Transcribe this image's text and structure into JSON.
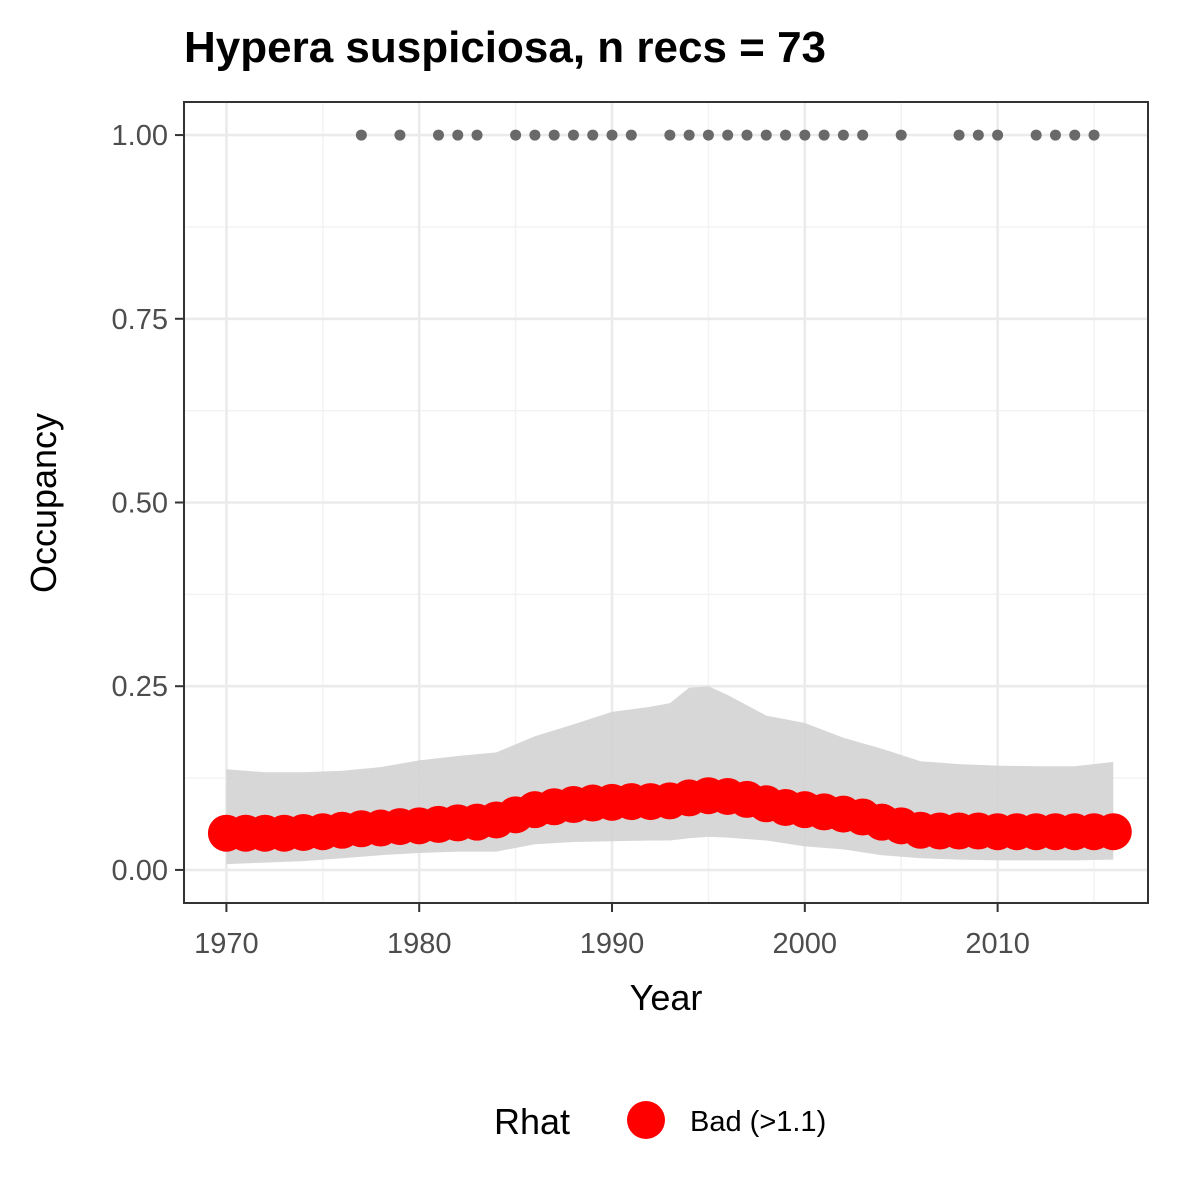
{
  "chart_data": {
    "type": "line",
    "title": "Hypera suspiciosa, n recs = 73",
    "xlabel": "Year",
    "ylabel": "Occupancy",
    "xlim": [
      1967.8,
      2017.8
    ],
    "ylim": [
      -0.045,
      1.045
    ],
    "x_ticks": [
      1970,
      1980,
      1990,
      2000,
      2010
    ],
    "x_tick_labels": [
      "1970",
      "1980",
      "1990",
      "2000",
      "2010"
    ],
    "y_ticks": [
      0,
      0.25,
      0.5,
      0.75,
      1.0
    ],
    "y_tick_labels": [
      "0.00",
      "0.25",
      "0.50",
      "0.75",
      "1.00"
    ],
    "grid": true,
    "legend": {
      "position": "bottom",
      "title": "Rhat",
      "entries": [
        {
          "label": "Bad (>1.1)",
          "color": "#ff0000"
        }
      ]
    },
    "series": [
      {
        "kind": "ribbon",
        "color": "#d3d3d3",
        "x": [
          1970,
          1972,
          1974,
          1976,
          1978,
          1980,
          1982,
          1984,
          1986,
          1988,
          1990,
          1992,
          1993,
          1994,
          1995,
          1996,
          1998,
          2000,
          2002,
          2004,
          2006,
          2008,
          2010,
          2012,
          2014,
          2016
        ],
        "upper": [
          0.137,
          0.133,
          0.133,
          0.135,
          0.14,
          0.149,
          0.155,
          0.16,
          0.182,
          0.198,
          0.215,
          0.222,
          0.227,
          0.248,
          0.25,
          0.238,
          0.21,
          0.2,
          0.18,
          0.165,
          0.148,
          0.144,
          0.142,
          0.141,
          0.141,
          0.147
        ],
        "lower": [
          0.008,
          0.01,
          0.012,
          0.016,
          0.02,
          0.023,
          0.025,
          0.025,
          0.035,
          0.038,
          0.039,
          0.04,
          0.04,
          0.043,
          0.045,
          0.044,
          0.04,
          0.032,
          0.028,
          0.02,
          0.016,
          0.014,
          0.013,
          0.013,
          0.013,
          0.014
        ]
      },
      {
        "kind": "points",
        "color": "#ff0000",
        "x": [
          1970,
          1971,
          1972,
          1973,
          1974,
          1975,
          1976,
          1977,
          1978,
          1979,
          1980,
          1981,
          1982,
          1983,
          1984,
          1985,
          1986,
          1987,
          1988,
          1989,
          1990,
          1991,
          1992,
          1993,
          1994,
          1995,
          1996,
          1997,
          1998,
          1999,
          2000,
          2001,
          2002,
          2003,
          2004,
          2005,
          2006,
          2007,
          2008,
          2009,
          2010,
          2011,
          2012,
          2013,
          2014,
          2015,
          2016
        ],
        "y": [
          0.05,
          0.05,
          0.05,
          0.05,
          0.051,
          0.052,
          0.054,
          0.056,
          0.057,
          0.059,
          0.06,
          0.062,
          0.064,
          0.065,
          0.068,
          0.075,
          0.082,
          0.086,
          0.089,
          0.091,
          0.092,
          0.093,
          0.093,
          0.094,
          0.098,
          0.101,
          0.1,
          0.096,
          0.09,
          0.085,
          0.082,
          0.079,
          0.076,
          0.072,
          0.065,
          0.06,
          0.054,
          0.053,
          0.053,
          0.053,
          0.052,
          0.052,
          0.052,
          0.052,
          0.052,
          0.052,
          0.052
        ]
      },
      {
        "kind": "records",
        "color": "#696969",
        "x": [
          1977,
          1979,
          1981,
          1982,
          1983,
          1985,
          1986,
          1987,
          1988,
          1989,
          1990,
          1991,
          1993,
          1994,
          1995,
          1996,
          1997,
          1998,
          1999,
          2000,
          2001,
          2002,
          2003,
          2005,
          2008,
          2009,
          2010,
          2012,
          2013,
          2014,
          2015
        ],
        "y": [
          1,
          1,
          1,
          1,
          1,
          1,
          1,
          1,
          1,
          1,
          1,
          1,
          1,
          1,
          1,
          1,
          1,
          1,
          1,
          1,
          1,
          1,
          1,
          1,
          1,
          1,
          1,
          1,
          1,
          1,
          1
        ]
      }
    ]
  }
}
